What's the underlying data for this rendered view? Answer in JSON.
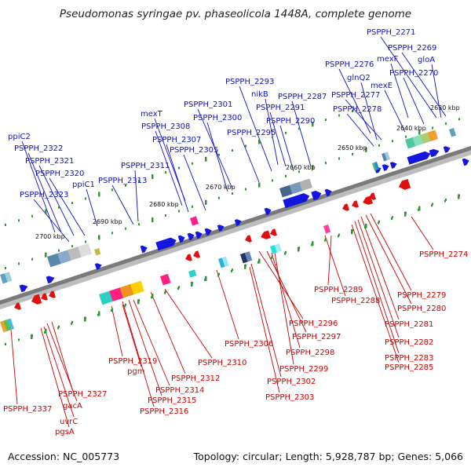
{
  "header": {
    "title": "Pseudomonas syringae pv. phaseolicola 1448A, complete genome"
  },
  "footer": {
    "accession": "Accession: NC_005773",
    "summary": "Topology: circular; Length: 5,928,787 bp; Genes: 5,066"
  },
  "colors": {
    "forward_label": "#1010c8",
    "reverse_label": "#cc0000",
    "forward_gene": "#1515e0",
    "reverse_gene": "#e01010",
    "backbone": "#777777",
    "tick": "#2e9a2e"
  },
  "scale_ticks": [
    {
      "label": "2630 kbp"
    },
    {
      "label": "2640 kbp"
    },
    {
      "label": "2650 kbp"
    },
    {
      "label": "2660 kbp"
    },
    {
      "label": "2670 kbp"
    },
    {
      "label": "2680 kbp"
    },
    {
      "label": "2690 kbp"
    },
    {
      "label": "2700 kbp"
    }
  ],
  "forward_labels": [
    {
      "text": "PSPPH_2271"
    },
    {
      "text": "PSPPH_2269"
    },
    {
      "text": "mexF"
    },
    {
      "text": "gloA"
    },
    {
      "text": "PSPPH_2276"
    },
    {
      "text": "PSPPH_2270"
    },
    {
      "text": "glnQ2"
    },
    {
      "text": "mexE"
    },
    {
      "text": "PSPPH_2277"
    },
    {
      "text": "PSPPH_2287"
    },
    {
      "text": "PSPPH_2278"
    },
    {
      "text": "PSPPH_2293"
    },
    {
      "text": "nikB"
    },
    {
      "text": "PSPPH_2291"
    },
    {
      "text": "PSPPH_2290"
    },
    {
      "text": "PSPPH_2301"
    },
    {
      "text": "mexT"
    },
    {
      "text": "PSPPH_2300"
    },
    {
      "text": "PSPPH_2308"
    },
    {
      "text": "PSPPH_2295"
    },
    {
      "text": "PSPPH_2307"
    },
    {
      "text": "PSPPH_2305"
    },
    {
      "text": "ppiC2"
    },
    {
      "text": "PSPPH_2322"
    },
    {
      "text": "PSPPH_2321"
    },
    {
      "text": "PSPPH_2311"
    },
    {
      "text": "PSPPH_2320"
    },
    {
      "text": "PSPPH_2313"
    },
    {
      "text": "ppiC1"
    },
    {
      "text": "PSPPH_2323"
    }
  ],
  "reverse_labels": [
    {
      "text": "PSPPH_2274"
    },
    {
      "text": "PSPPH_2289"
    },
    {
      "text": "PSPPH_2279"
    },
    {
      "text": "PSPPH_2288"
    },
    {
      "text": "PSPPH_2280"
    },
    {
      "text": "PSPPH_2296"
    },
    {
      "text": "PSPPH_2281"
    },
    {
      "text": "PSPPH_2297"
    },
    {
      "text": "PSPPH_2306"
    },
    {
      "text": "PSPPH_2282"
    },
    {
      "text": "PSPPH_2298"
    },
    {
      "text": "PSPPH_2283"
    },
    {
      "text": "PSPPH_2319"
    },
    {
      "text": "PSPPH_2310"
    },
    {
      "text": "PSPPH_2285"
    },
    {
      "text": "PSPPH_2299"
    },
    {
      "text": "pgm"
    },
    {
      "text": "PSPPH_2312"
    },
    {
      "text": "PSPPH_2302"
    },
    {
      "text": "PSPPH_2314"
    },
    {
      "text": "PSPPH_2327"
    },
    {
      "text": "PSPPH_2303"
    },
    {
      "text": "PSPPH_2315"
    },
    {
      "text": "gacA"
    },
    {
      "text": "PSPPH_2337"
    },
    {
      "text": "PSPPH_2316"
    },
    {
      "text": "uvrC"
    },
    {
      "text": "pgsA"
    }
  ]
}
